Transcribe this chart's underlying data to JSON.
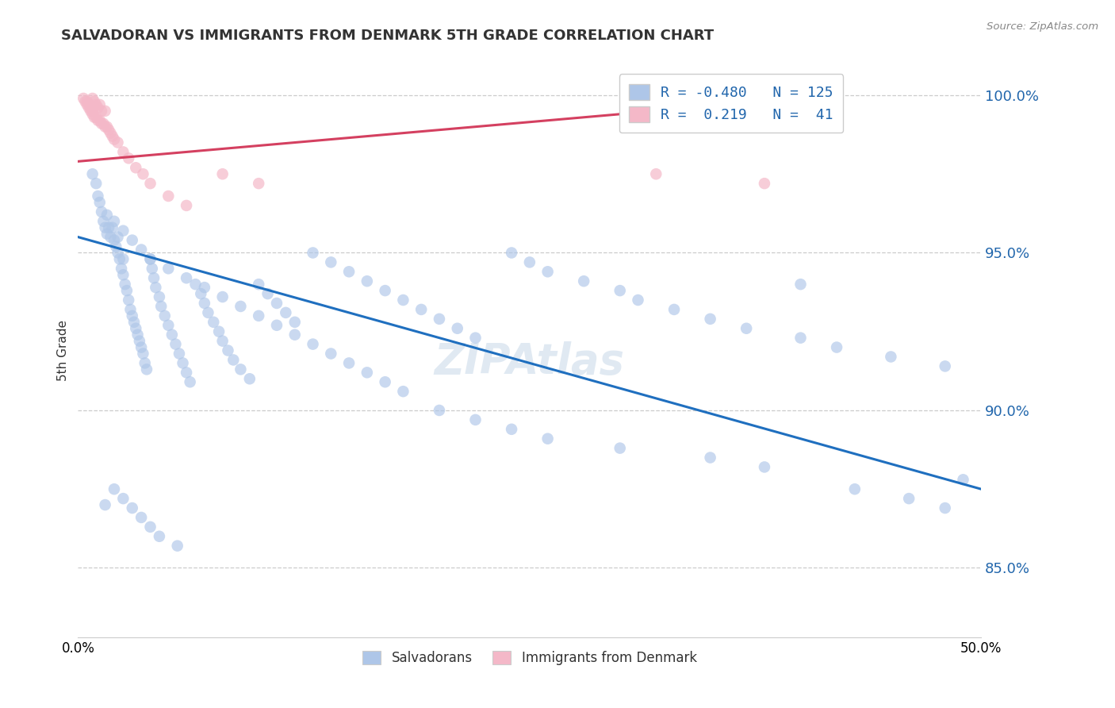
{
  "title": "SALVADORAN VS IMMIGRANTS FROM DENMARK 5TH GRADE CORRELATION CHART",
  "source": "Source: ZipAtlas.com",
  "ylabel": "5th Grade",
  "yticks": [
    0.85,
    0.9,
    0.95,
    1.0
  ],
  "ytick_labels": [
    "85.0%",
    "90.0%",
    "95.0%",
    "100.0%"
  ],
  "xlim": [
    0.0,
    0.5
  ],
  "ylim": [
    0.828,
    1.01
  ],
  "legend_r1": "-0.480",
  "legend_n1": "125",
  "legend_r2": "0.219",
  "legend_n2": "41",
  "blue_color": "#aec6e8",
  "pink_color": "#f4b8c8",
  "blue_line_color": "#1f6fbf",
  "pink_line_color": "#d44060",
  "watermark": "ZIPAtlas",
  "blue_scatter_x": [
    0.008,
    0.01,
    0.011,
    0.012,
    0.013,
    0.014,
    0.015,
    0.016,
    0.016,
    0.017,
    0.018,
    0.019,
    0.02,
    0.021,
    0.022,
    0.022,
    0.023,
    0.024,
    0.025,
    0.025,
    0.026,
    0.027,
    0.028,
    0.029,
    0.03,
    0.031,
    0.032,
    0.033,
    0.034,
    0.035,
    0.036,
    0.037,
    0.038,
    0.04,
    0.041,
    0.042,
    0.043,
    0.045,
    0.046,
    0.048,
    0.05,
    0.052,
    0.054,
    0.056,
    0.058,
    0.06,
    0.062,
    0.065,
    0.068,
    0.07,
    0.072,
    0.075,
    0.078,
    0.08,
    0.083,
    0.086,
    0.09,
    0.095,
    0.1,
    0.105,
    0.11,
    0.115,
    0.12,
    0.13,
    0.14,
    0.15,
    0.16,
    0.17,
    0.18,
    0.19,
    0.2,
    0.21,
    0.22,
    0.24,
    0.25,
    0.26,
    0.28,
    0.3,
    0.31,
    0.33,
    0.35,
    0.37,
    0.4,
    0.42,
    0.45,
    0.48,
    0.49,
    0.02,
    0.025,
    0.03,
    0.035,
    0.04,
    0.05,
    0.06,
    0.07,
    0.08,
    0.09,
    0.1,
    0.11,
    0.12,
    0.13,
    0.14,
    0.15,
    0.16,
    0.17,
    0.18,
    0.2,
    0.22,
    0.24,
    0.26,
    0.3,
    0.35,
    0.38,
    0.4,
    0.43,
    0.46,
    0.48,
    0.015,
    0.02,
    0.025,
    0.03,
    0.035,
    0.04,
    0.045,
    0.055
  ],
  "blue_scatter_y": [
    0.975,
    0.972,
    0.968,
    0.966,
    0.963,
    0.96,
    0.958,
    0.956,
    0.962,
    0.958,
    0.955,
    0.958,
    0.954,
    0.952,
    0.95,
    0.955,
    0.948,
    0.945,
    0.943,
    0.948,
    0.94,
    0.938,
    0.935,
    0.932,
    0.93,
    0.928,
    0.926,
    0.924,
    0.922,
    0.92,
    0.918,
    0.915,
    0.913,
    0.948,
    0.945,
    0.942,
    0.939,
    0.936,
    0.933,
    0.93,
    0.927,
    0.924,
    0.921,
    0.918,
    0.915,
    0.912,
    0.909,
    0.94,
    0.937,
    0.934,
    0.931,
    0.928,
    0.925,
    0.922,
    0.919,
    0.916,
    0.913,
    0.91,
    0.94,
    0.937,
    0.934,
    0.931,
    0.928,
    0.95,
    0.947,
    0.944,
    0.941,
    0.938,
    0.935,
    0.932,
    0.929,
    0.926,
    0.923,
    0.95,
    0.947,
    0.944,
    0.941,
    0.938,
    0.935,
    0.932,
    0.929,
    0.926,
    0.923,
    0.92,
    0.917,
    0.914,
    0.878,
    0.96,
    0.957,
    0.954,
    0.951,
    0.948,
    0.945,
    0.942,
    0.939,
    0.936,
    0.933,
    0.93,
    0.927,
    0.924,
    0.921,
    0.918,
    0.915,
    0.912,
    0.909,
    0.906,
    0.9,
    0.897,
    0.894,
    0.891,
    0.888,
    0.885,
    0.882,
    0.94,
    0.875,
    0.872,
    0.869,
    0.87,
    0.875,
    0.872,
    0.869,
    0.866,
    0.863,
    0.86,
    0.857
  ],
  "pink_scatter_x": [
    0.003,
    0.004,
    0.005,
    0.005,
    0.006,
    0.006,
    0.007,
    0.007,
    0.008,
    0.008,
    0.008,
    0.009,
    0.009,
    0.01,
    0.01,
    0.011,
    0.011,
    0.012,
    0.012,
    0.013,
    0.013,
    0.014,
    0.015,
    0.015,
    0.016,
    0.017,
    0.018,
    0.019,
    0.02,
    0.022,
    0.025,
    0.028,
    0.032,
    0.036,
    0.04,
    0.05,
    0.06,
    0.08,
    0.1,
    0.32,
    0.38
  ],
  "pink_scatter_y": [
    0.999,
    0.998,
    0.998,
    0.997,
    0.997,
    0.996,
    0.996,
    0.995,
    0.995,
    0.994,
    0.999,
    0.993,
    0.998,
    0.993,
    0.997,
    0.992,
    0.996,
    0.992,
    0.997,
    0.991,
    0.995,
    0.991,
    0.99,
    0.995,
    0.99,
    0.989,
    0.988,
    0.987,
    0.986,
    0.985,
    0.982,
    0.98,
    0.977,
    0.975,
    0.972,
    0.968,
    0.965,
    0.975,
    0.972,
    0.975,
    0.972
  ],
  "blue_trend_x": [
    0.0,
    0.5
  ],
  "blue_trend_y": [
    0.955,
    0.875
  ],
  "pink_trend_x": [
    0.0,
    0.38
  ],
  "pink_trend_y": [
    0.979,
    0.998
  ]
}
